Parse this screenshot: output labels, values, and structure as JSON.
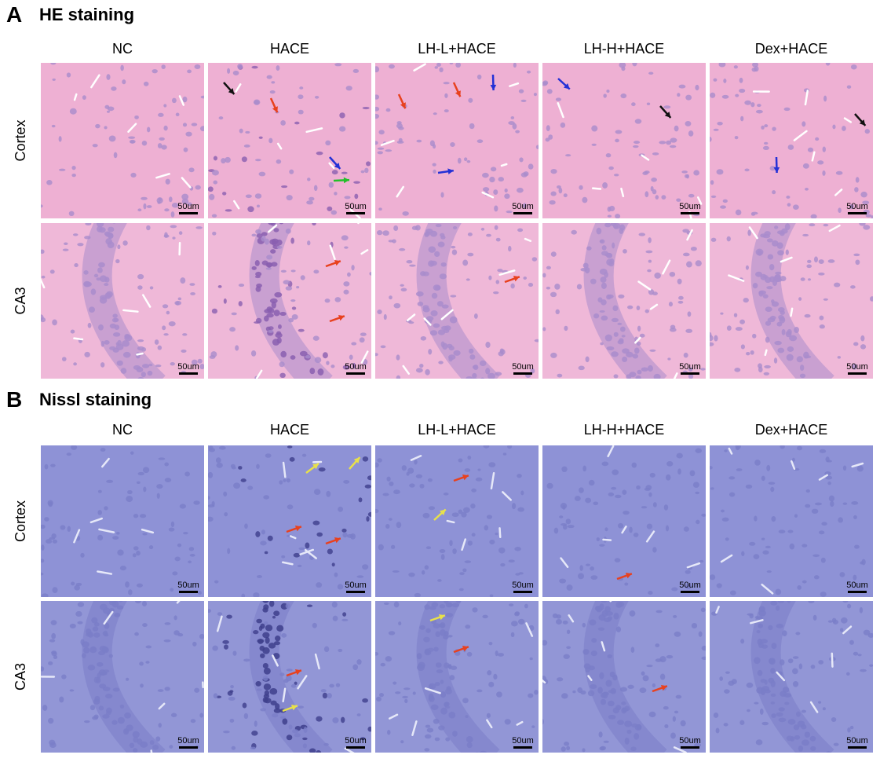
{
  "panels": [
    {
      "letter": "A",
      "title": "HE staining",
      "columns": [
        "NC",
        "HACE",
        "LH-L+HACE",
        "LH-H+HACE",
        "Dex+HACE"
      ],
      "rows": [
        "Cortex",
        "CA3"
      ],
      "scale_bar": "50um"
    },
    {
      "letter": "B",
      "title": "Nissl staining",
      "columns": [
        "NC",
        "HACE",
        "LH-L+HACE",
        "LH-H+HACE",
        "Dex+HACE"
      ],
      "rows": [
        "Cortex",
        "CA3"
      ],
      "scale_bar": "50um"
    }
  ]
}
